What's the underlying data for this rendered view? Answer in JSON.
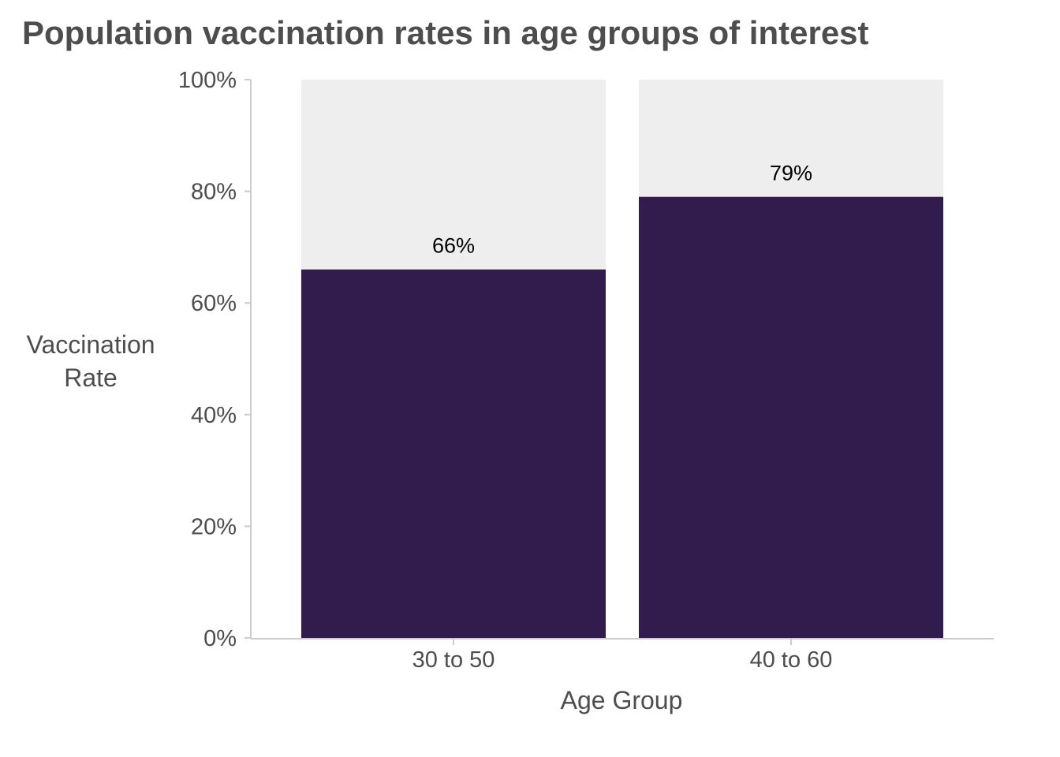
{
  "chart_data": {
    "type": "bar",
    "stacked_background": true,
    "title": "Population vaccination rates in age groups of interest",
    "xlabel": "Age Group",
    "ylabel": [
      "Vaccination",
      "Rate"
    ],
    "categories": [
      "30 to 50",
      "40 to 60"
    ],
    "values": [
      66,
      79
    ],
    "data_labels": [
      "66%",
      "79%"
    ],
    "ylim": [
      0,
      100
    ],
    "yticks": [
      0,
      20,
      40,
      60,
      80,
      100
    ],
    "ytick_labels": [
      "0%",
      "20%",
      "40%",
      "60%",
      "80%",
      "100%"
    ],
    "grid": false,
    "legend": "none",
    "colors": {
      "bar": "#321c4e",
      "background_bar": "#eeeeee",
      "axis": "#cccccc",
      "text": "#4d4d4d",
      "data_label": "#000000"
    }
  }
}
